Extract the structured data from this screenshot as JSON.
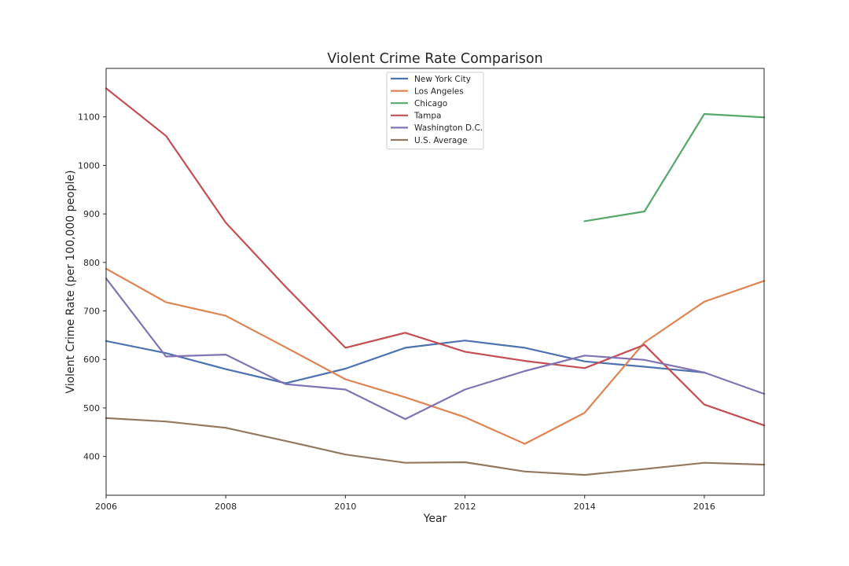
{
  "chart_data": {
    "type": "line",
    "title": "Violent Crime Rate Comparison",
    "xlabel": "Year",
    "ylabel": "Violent Crime Rate (per 100,000 people)",
    "xlim": [
      2006,
      2017
    ],
    "ylim": [
      320,
      1200
    ],
    "xticks": [
      2006,
      2008,
      2010,
      2012,
      2014,
      2016
    ],
    "yticks": [
      400,
      500,
      600,
      700,
      800,
      900,
      1000,
      1100
    ],
    "grid": false,
    "legend_position": "upper-center",
    "series": [
      {
        "name": "New York City",
        "color": "#4c72b0",
        "points": [
          [
            2006,
            638
          ],
          [
            2007,
            613
          ],
          [
            2008,
            580
          ],
          [
            2009,
            551
          ],
          [
            2010,
            581
          ],
          [
            2011,
            624
          ],
          [
            2012,
            639
          ],
          [
            2013,
            624
          ],
          [
            2014,
            596
          ],
          [
            2015,
            585
          ],
          [
            2016,
            573
          ]
        ]
      },
      {
        "name": "Los Angeles",
        "color": "#dd8452",
        "points": [
          [
            2006,
            787
          ],
          [
            2007,
            718
          ],
          [
            2008,
            690
          ],
          [
            2009,
            625
          ],
          [
            2010,
            559
          ],
          [
            2011,
            522
          ],
          [
            2012,
            481
          ],
          [
            2013,
            426
          ],
          [
            2014,
            490
          ],
          [
            2015,
            635
          ],
          [
            2016,
            719
          ],
          [
            2017,
            762
          ]
        ]
      },
      {
        "name": "Chicago",
        "color": "#55a868",
        "points": [
          [
            2014,
            885
          ],
          [
            2015,
            905
          ],
          [
            2016,
            1106
          ],
          [
            2017,
            1099
          ]
        ]
      },
      {
        "name": "Tampa",
        "color": "#c44e52",
        "points": [
          [
            2006,
            1159
          ],
          [
            2007,
            1061
          ],
          [
            2008,
            882
          ],
          [
            2009,
            750
          ],
          [
            2010,
            624
          ],
          [
            2011,
            655
          ],
          [
            2012,
            616
          ],
          [
            2013,
            597
          ],
          [
            2014,
            582
          ],
          [
            2015,
            630
          ],
          [
            2016,
            507
          ],
          [
            2017,
            464
          ]
        ]
      },
      {
        "name": "Washington D.C.",
        "color": "#8172b3",
        "points": [
          [
            2006,
            767
          ],
          [
            2007,
            606
          ],
          [
            2008,
            610
          ],
          [
            2009,
            549
          ],
          [
            2010,
            538
          ],
          [
            2011,
            477
          ],
          [
            2012,
            538
          ],
          [
            2013,
            576
          ],
          [
            2014,
            608
          ],
          [
            2015,
            599
          ],
          [
            2016,
            573
          ],
          [
            2017,
            529
          ]
        ]
      },
      {
        "name": "U.S. Average",
        "color": "#937860",
        "points": [
          [
            2006,
            479
          ],
          [
            2007,
            472
          ],
          [
            2008,
            459
          ],
          [
            2009,
            432
          ],
          [
            2010,
            404
          ],
          [
            2011,
            387
          ],
          [
            2012,
            388
          ],
          [
            2013,
            369
          ],
          [
            2014,
            362
          ],
          [
            2015,
            374
          ],
          [
            2016,
            387
          ],
          [
            2017,
            383
          ]
        ]
      }
    ]
  }
}
